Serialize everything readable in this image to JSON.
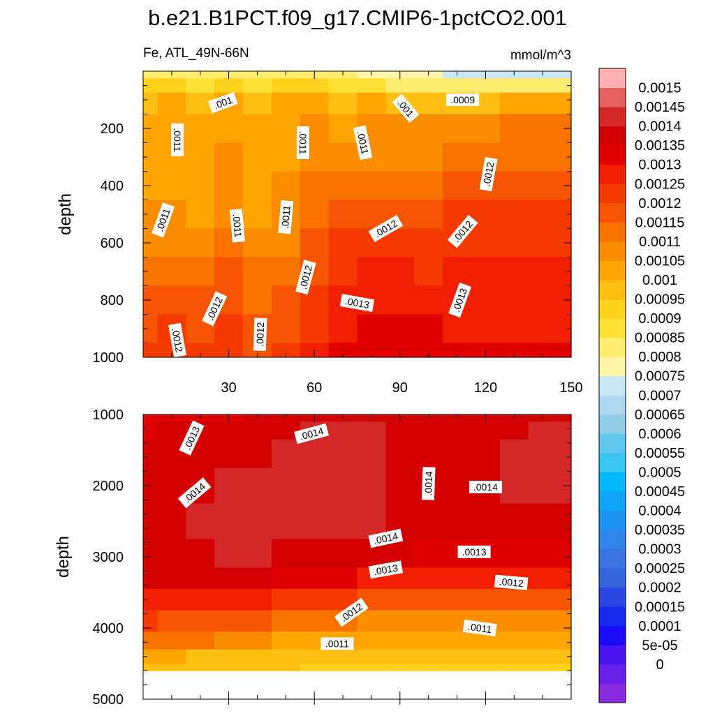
{
  "chart_data": [
    {
      "type": "heatmap",
      "panel": "upper",
      "title": "b.e21.B1PCT.f09_g17.CMIP6-1pctCO2.001",
      "subtitle_left": "Fe, ATL_49N-66N",
      "subtitle_right": "mmol/m^3",
      "xlabel": "",
      "ylabel": "depth",
      "xlim": [
        0,
        150
      ],
      "ylim": [
        1000,
        0
      ],
      "x_ticks": [
        30,
        60,
        90,
        120,
        150
      ],
      "x_tick_labels": [
        "30",
        "60",
        "90",
        "120",
        "150"
      ],
      "y_ticks": [
        200,
        400,
        600,
        800,
        1000
      ],
      "y_tick_labels": [
        "200",
        "400",
        "600",
        "800",
        "1000"
      ],
      "x_grid": [
        0,
        10,
        20,
        30,
        40,
        50,
        60,
        70,
        80,
        90,
        100,
        110,
        120,
        130,
        140,
        150
      ],
      "y_grid": [
        0,
        50,
        100,
        200,
        300,
        400,
        500,
        600,
        700,
        800,
        900,
        1000
      ],
      "values": [
        [
          0.00085,
          0.00085,
          0.00085,
          0.00085,
          0.00085,
          0.00085,
          0.00085,
          0.00085,
          0.00082,
          0.0008,
          0.0008,
          0.00078,
          0.00078,
          0.00078,
          0.00078,
          0.00078
        ],
        [
          0.00095,
          0.00095,
          0.00092,
          0.00095,
          0.00092,
          0.00095,
          0.00095,
          0.00092,
          0.0009,
          0.00088,
          0.00087,
          0.00085,
          0.00085,
          0.00085,
          0.00085,
          0.00085
        ],
        [
          0.00103,
          0.00105,
          0.00103,
          0.00105,
          0.00103,
          0.00105,
          0.00107,
          0.00103,
          0.00105,
          0.00103,
          0.00102,
          0.00103,
          0.00104,
          0.00105,
          0.00105,
          0.00105
        ],
        [
          0.00107,
          0.00107,
          0.00106,
          0.00108,
          0.00106,
          0.00107,
          0.00111,
          0.00108,
          0.00111,
          0.0011,
          0.0011,
          0.00112,
          0.00114,
          0.00115,
          0.00115,
          0.00115
        ],
        [
          0.00108,
          0.00108,
          0.00107,
          0.0011,
          0.00107,
          0.00109,
          0.00113,
          0.00112,
          0.00114,
          0.00113,
          0.00114,
          0.00117,
          0.00118,
          0.00118,
          0.00118,
          0.00118
        ],
        [
          0.00109,
          0.00109,
          0.00108,
          0.00111,
          0.00108,
          0.0011,
          0.00116,
          0.00117,
          0.00118,
          0.00117,
          0.00118,
          0.00121,
          0.00122,
          0.00122,
          0.00122,
          0.00122
        ],
        [
          0.0011,
          0.00111,
          0.00109,
          0.00113,
          0.00109,
          0.00112,
          0.00118,
          0.00121,
          0.00123,
          0.00121,
          0.00122,
          0.00125,
          0.00126,
          0.00126,
          0.00126,
          0.00126
        ],
        [
          0.00114,
          0.00114,
          0.00112,
          0.00116,
          0.00112,
          0.00114,
          0.0012,
          0.00126,
          0.00127,
          0.00125,
          0.00126,
          0.00128,
          0.00129,
          0.00129,
          0.00129,
          0.00129
        ],
        [
          0.00118,
          0.00119,
          0.00116,
          0.0012,
          0.00115,
          0.00118,
          0.00122,
          0.00129,
          0.00131,
          0.0013,
          0.00129,
          0.00131,
          0.00131,
          0.00131,
          0.00131,
          0.00131
        ],
        [
          0.00121,
          0.00124,
          0.00121,
          0.00124,
          0.00119,
          0.00121,
          0.00125,
          0.00131,
          0.00133,
          0.00133,
          0.00132,
          0.00132,
          0.00132,
          0.00132,
          0.00132,
          0.00132
        ],
        [
          0.00124,
          0.00126,
          0.00124,
          0.00127,
          0.00121,
          0.00124,
          0.00128,
          0.00133,
          0.00136,
          0.00136,
          0.00135,
          0.00134,
          0.00134,
          0.00134,
          0.00134,
          0.00134
        ],
        [
          0.00126,
          0.00128,
          0.00126,
          0.00129,
          0.00124,
          0.00126,
          0.0013,
          0.00135,
          0.00138,
          0.00138,
          0.00137,
          0.00136,
          0.00136,
          0.00136,
          0.00136,
          0.00136
        ]
      ],
      "contour_labels": [
        {
          "text": ".0011",
          "x": 12,
          "y": 240,
          "angle": 90
        },
        {
          "text": ".001",
          "x": 28,
          "y": 110,
          "angle": -20
        },
        {
          "text": ".0011",
          "x": 56,
          "y": 250,
          "angle": 90
        },
        {
          "text": ".0011",
          "x": 77,
          "y": 250,
          "angle": 78
        },
        {
          "text": ".001",
          "x": 92,
          "y": 130,
          "angle": 50
        },
        {
          "text": ".0009",
          "x": 112,
          "y": 100,
          "angle": 0
        },
        {
          "text": ".0012",
          "x": 121,
          "y": 360,
          "angle": -80
        },
        {
          "text": ".0011",
          "x": 7,
          "y": 520,
          "angle": -70
        },
        {
          "text": ".0011",
          "x": 33,
          "y": 540,
          "angle": 85
        },
        {
          "text": ".0011",
          "x": 50,
          "y": 510,
          "angle": -85
        },
        {
          "text": ".0012",
          "x": 85,
          "y": 550,
          "angle": -30
        },
        {
          "text": ".0012",
          "x": 112,
          "y": 560,
          "angle": -50
        },
        {
          "text": ".0012",
          "x": 57,
          "y": 720,
          "angle": -75
        },
        {
          "text": ".0013",
          "x": 75,
          "y": 810,
          "angle": 10
        },
        {
          "text": ".0013",
          "x": 111,
          "y": 800,
          "angle": -70
        },
        {
          "text": ".0012",
          "x": 12,
          "y": 940,
          "angle": 80
        },
        {
          "text": ".0012",
          "x": 25,
          "y": 830,
          "angle": -65
        },
        {
          "text": ".0012",
          "x": 41,
          "y": 920,
          "angle": -88
        }
      ]
    },
    {
      "type": "heatmap",
      "panel": "lower",
      "xlabel": "",
      "ylabel": "depth",
      "xlim": [
        0,
        150
      ],
      "ylim": [
        5000,
        1000
      ],
      "ocean_bottom_depth": 4600,
      "y_ticks": [
        1000,
        2000,
        3000,
        4000,
        5000
      ],
      "y_tick_labels": [
        "1000",
        "2000",
        "3000",
        "4000",
        "5000"
      ],
      "x_grid": [
        0,
        10,
        20,
        30,
        40,
        50,
        60,
        70,
        80,
        90,
        100,
        110,
        120,
        130,
        140,
        150
      ],
      "y_grid": [
        1000,
        1200,
        1500,
        2000,
        2500,
        3000,
        3300,
        3600,
        3900,
        4200,
        4400,
        4600
      ],
      "values": [
        [
          0.00136,
          0.00139,
          0.00137,
          0.00139,
          0.00141,
          0.00142,
          0.00143,
          0.00143,
          0.00143,
          0.00143,
          0.00143,
          0.00143,
          0.00143,
          0.00143,
          0.00143,
          0.00143
        ],
        [
          0.00139,
          0.00141,
          0.0014,
          0.00141,
          0.00142,
          0.00144,
          0.00145,
          0.00145,
          0.00145,
          0.00144,
          0.00143,
          0.00143,
          0.00143,
          0.00144,
          0.00145,
          0.00145
        ],
        [
          0.00141,
          0.00142,
          0.00142,
          0.00143,
          0.00144,
          0.00145,
          0.00146,
          0.00147,
          0.00146,
          0.00144,
          0.00143,
          0.00143,
          0.00144,
          0.00145,
          0.00146,
          0.00146
        ],
        [
          0.00143,
          0.00143,
          0.00144,
          0.00146,
          0.00145,
          0.00145,
          0.00147,
          0.00148,
          0.00146,
          0.00143,
          0.00142,
          0.00142,
          0.00144,
          0.00145,
          0.00146,
          0.00146
        ],
        [
          0.00144,
          0.00144,
          0.00145,
          0.00147,
          0.00146,
          0.00145,
          0.00146,
          0.00147,
          0.00145,
          0.00142,
          0.00141,
          0.00141,
          0.00142,
          0.00143,
          0.00143,
          0.00143
        ],
        [
          0.00143,
          0.00143,
          0.00144,
          0.00145,
          0.00145,
          0.00144,
          0.00143,
          0.00142,
          0.00141,
          0.0014,
          0.00139,
          0.00138,
          0.00138,
          0.00138,
          0.00138,
          0.00138
        ],
        [
          0.0014,
          0.0014,
          0.0014,
          0.0014,
          0.0014,
          0.00139,
          0.00137,
          0.00136,
          0.00134,
          0.00133,
          0.00132,
          0.00131,
          0.00131,
          0.00131,
          0.00131,
          0.00131
        ],
        [
          0.00131,
          0.00131,
          0.00131,
          0.00131,
          0.00131,
          0.00129,
          0.00127,
          0.00125,
          0.00124,
          0.00123,
          0.00122,
          0.00121,
          0.00121,
          0.00121,
          0.00121,
          0.00121
        ],
        [
          0.00125,
          0.00124,
          0.00124,
          0.00123,
          0.00121,
          0.00119,
          0.00117,
          0.00115,
          0.00114,
          0.00113,
          0.00113,
          0.00112,
          0.00112,
          0.00112,
          0.00112,
          0.00112
        ],
        [
          0.00117,
          0.00116,
          0.00115,
          0.00114,
          0.00111,
          0.00109,
          0.00108,
          0.00107,
          0.00106,
          0.00106,
          0.00105,
          0.00105,
          0.00105,
          0.00105,
          0.00105,
          0.00105
        ],
        [
          0.00106,
          0.00105,
          0.00104,
          0.00103,
          0.00102,
          0.00101,
          0.00101,
          0.001,
          0.001,
          0.001,
          0.001,
          0.001,
          0.001,
          0.001,
          0.001,
          0.001
        ],
        [
          0.00101,
          0.00101,
          0.001,
          0.001,
          0.001,
          0.001,
          0.00099,
          0.00099,
          0.00099,
          0.00099,
          0.00099,
          0.00099,
          0.00099,
          0.00099,
          0.00099,
          0.00099
        ]
      ],
      "contour_labels": [
        {
          "text": ".0013",
          "x": 17,
          "y": 1330,
          "angle": -65
        },
        {
          "text": ".0014",
          "x": 59,
          "y": 1270,
          "angle": -15
        },
        {
          "text": ".0014",
          "x": 18,
          "y": 2100,
          "angle": -40
        },
        {
          "text": ".0014",
          "x": 100,
          "y": 1970,
          "angle": -88
        },
        {
          "text": ".0014",
          "x": 120,
          "y": 2020,
          "angle": 0
        },
        {
          "text": ".0014",
          "x": 85,
          "y": 2740,
          "angle": -12
        },
        {
          "text": ".0013",
          "x": 116,
          "y": 2930,
          "angle": 0
        },
        {
          "text": ".0013",
          "x": 85,
          "y": 3180,
          "angle": -10
        },
        {
          "text": ".0012",
          "x": 129,
          "y": 3360,
          "angle": 5
        },
        {
          "text": ".0012",
          "x": 73,
          "y": 3780,
          "angle": -35
        },
        {
          "text": ".0011",
          "x": 68,
          "y": 4220,
          "angle": 0
        },
        {
          "text": ".0011",
          "x": 118,
          "y": 4000,
          "angle": 8
        }
      ]
    }
  ],
  "colorbar": {
    "labels": [
      "0.0015",
      "0.00145",
      "0.0014",
      "0.00135",
      "0.0013",
      "0.00125",
      "0.0012",
      "0.00115",
      "0.0011",
      "0.00105",
      "0.001",
      "0.00095",
      "0.0009",
      "0.00085",
      "0.0008",
      "0.00075",
      "0.0007",
      "0.00065",
      "0.0006",
      "0.00055",
      "0.0005",
      "0.00045",
      "0.0004",
      "0.00035",
      "0.0003",
      "0.00025",
      "0.0002",
      "0.00015",
      "0.0001",
      "5e-05",
      "0"
    ],
    "levels_ascending": [
      0,
      5e-05,
      0.0001,
      0.00015,
      0.0002,
      0.00025,
      0.0003,
      0.00035,
      0.0004,
      0.00045,
      0.0005,
      0.00055,
      0.0006,
      0.00065,
      0.0007,
      0.00075,
      0.0008,
      0.00085,
      0.0009,
      0.00095,
      0.001,
      0.00105,
      0.0011,
      0.00115,
      0.0012,
      0.00125,
      0.0013,
      0.00135,
      0.0014,
      0.00145,
      0.0015
    ],
    "colors_ascending": [
      "#8a2be2",
      "#6a1fe8",
      "#4a16f0",
      "#1a0cf8",
      "#1428ee",
      "#2a46e2",
      "#3464de",
      "#3a72e0",
      "#2f85ea",
      "#1c93f3",
      "#10a6f8",
      "#00b8f8",
      "#38c6f2",
      "#60c8f0",
      "#90cdea",
      "#aed8ef",
      "#c8e6f4",
      "#fff5a8",
      "#ffec70",
      "#ffe136",
      "#ffd21c",
      "#ffbf12",
      "#ffa500",
      "#fa8c00",
      "#f87200",
      "#f55500",
      "#f43a00",
      "#f21e00",
      "#e00000",
      "#d20000",
      "#d42828",
      "#e46060",
      "#ffb0b0"
    ]
  }
}
